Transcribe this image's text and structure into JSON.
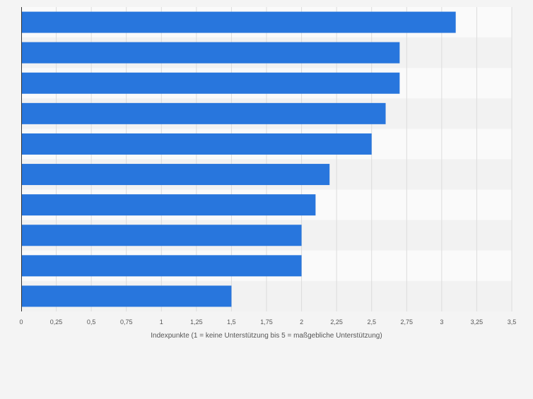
{
  "chart_data": {
    "type": "bar",
    "orientation": "horizontal",
    "title": "",
    "xlabel": "Indexpunkte (1 = keine Unterstützung bis 5 = maßgebliche Unterstützung)",
    "ylabel": "",
    "categories": [
      "",
      "",
      "",
      "",
      "",
      "",
      "",
      "",
      "",
      ""
    ],
    "values": [
      3.1,
      2.7,
      2.7,
      2.6,
      2.5,
      2.2,
      2.1,
      2.0,
      2.0,
      1.5
    ],
    "xlim": [
      0,
      3.5
    ],
    "xticks": [
      {
        "value": 0,
        "label": "0"
      },
      {
        "value": 0.25,
        "label": "0,25"
      },
      {
        "value": 0.5,
        "label": "0,5"
      },
      {
        "value": 0.75,
        "label": "0,75"
      },
      {
        "value": 1,
        "label": "1"
      },
      {
        "value": 1.25,
        "label": "1,25"
      },
      {
        "value": 1.5,
        "label": "1,5"
      },
      {
        "value": 1.75,
        "label": "1,75"
      },
      {
        "value": 2,
        "label": "2"
      },
      {
        "value": 2.25,
        "label": "2,25"
      },
      {
        "value": 2.5,
        "label": "2,5"
      },
      {
        "value": 2.75,
        "label": "2,75"
      },
      {
        "value": 3,
        "label": "3"
      },
      {
        "value": 3.25,
        "label": "3,25"
      },
      {
        "value": 3.5,
        "label": "3,5"
      }
    ],
    "grid": true,
    "legend": "none",
    "colors": {
      "bar": "#2876dd",
      "band_light": "#fafafa",
      "band_dark": "#f2f2f2",
      "grid": "#dcdcdc",
      "axis": "#333333",
      "tick_text": "#555555"
    }
  }
}
